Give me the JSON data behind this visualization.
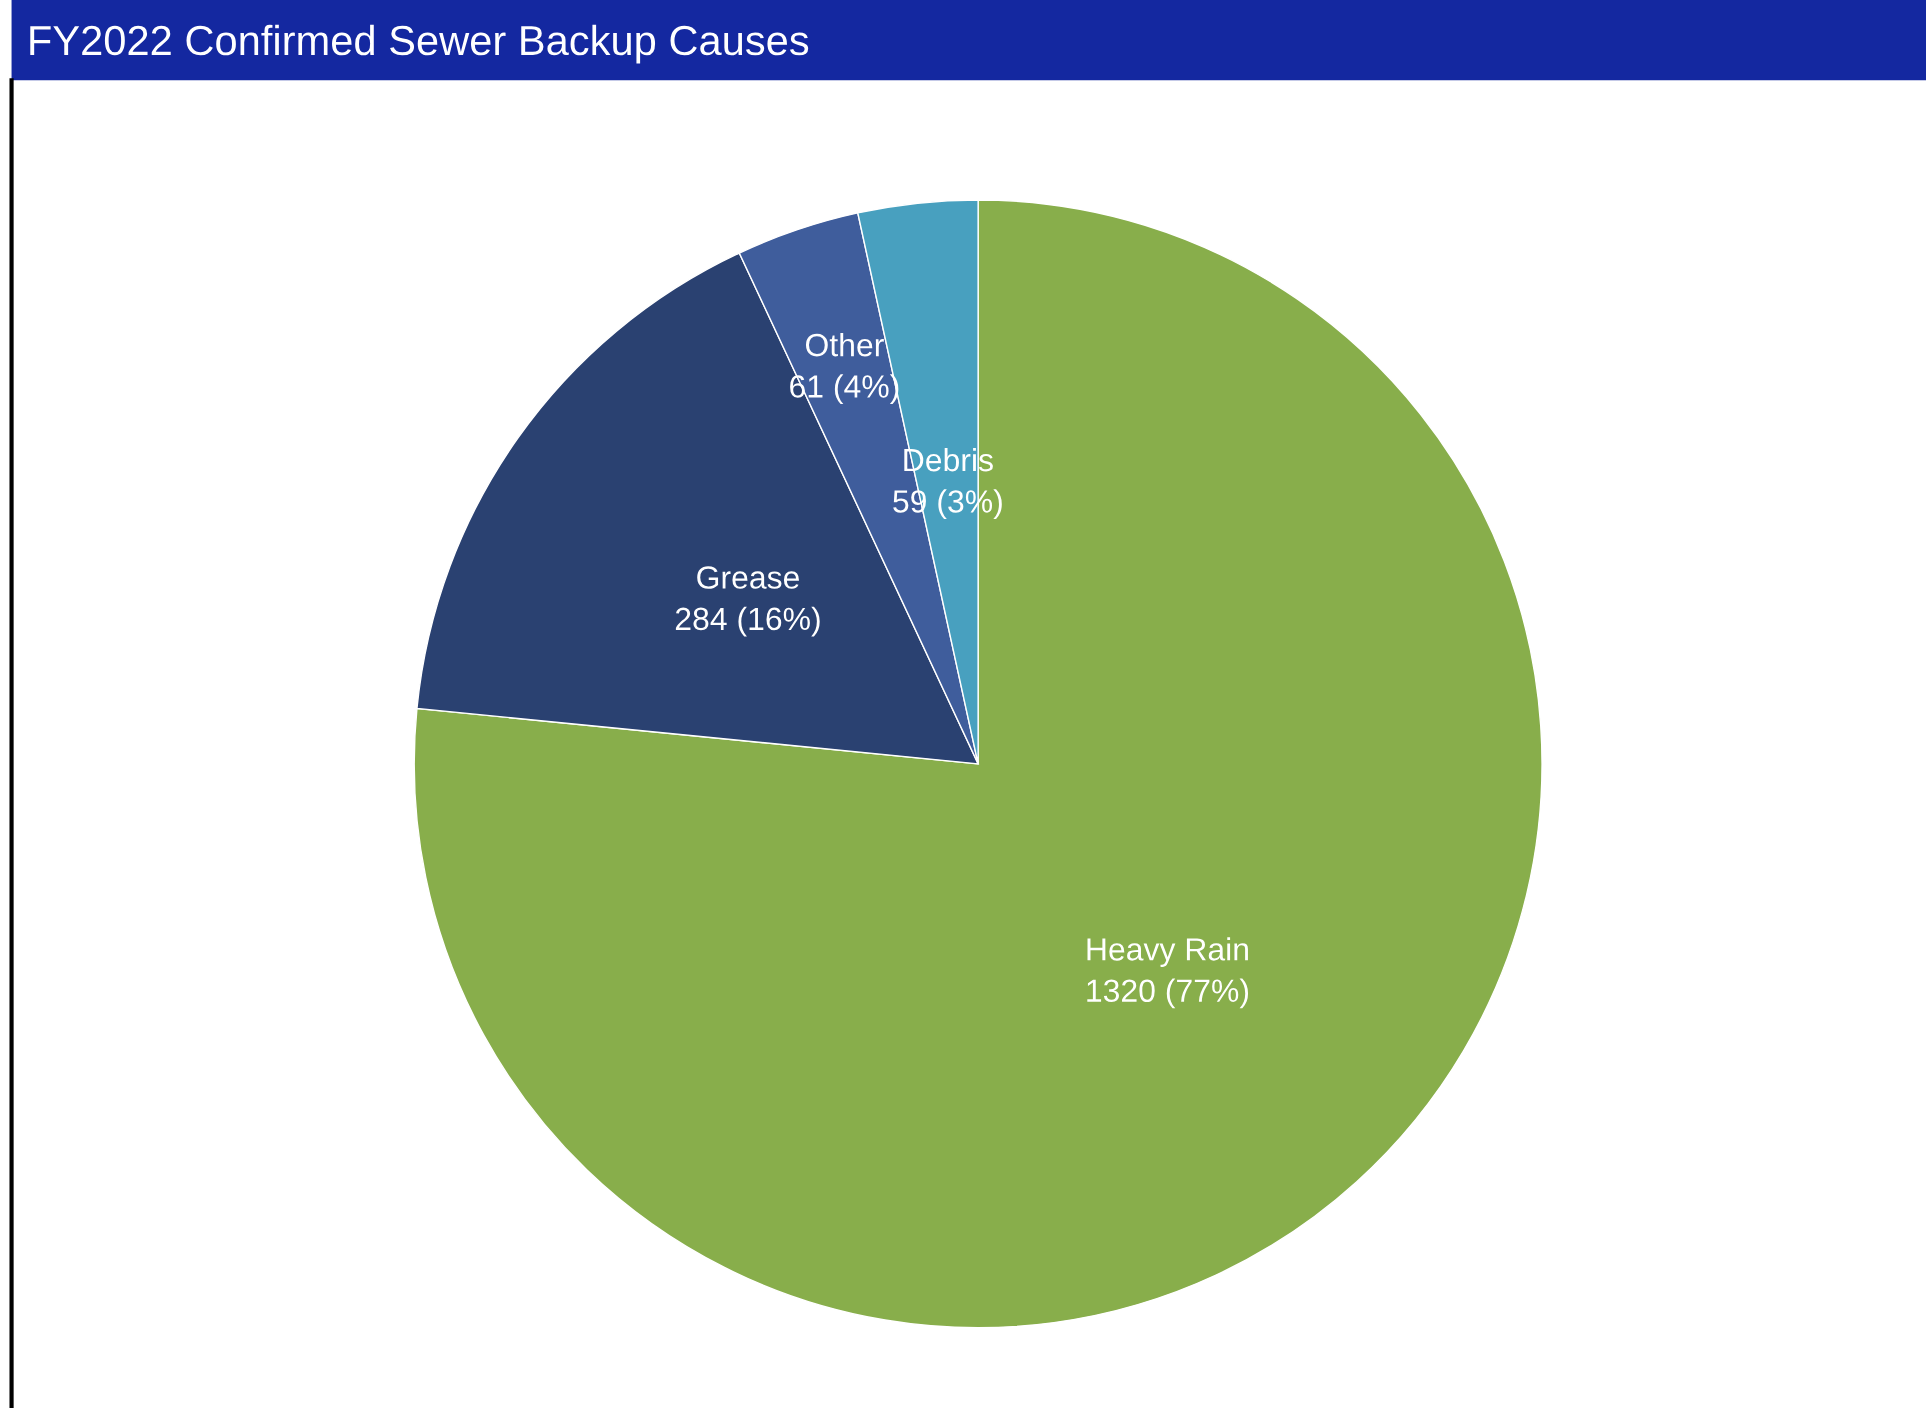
{
  "chart_data": {
    "type": "pie",
    "title": "FY2022 Confirmed Sewer Backup Causes",
    "categories": [
      "Heavy Rain",
      "Grease",
      "Other",
      "Debris"
    ],
    "values": [
      1320,
      284,
      61,
      59
    ],
    "value_labels": [
      "1320 (77%)",
      "284 (16%)",
      "61 (4%)",
      "59 (3%)"
    ],
    "colors": [
      "#88ae4b",
      "#2a4171",
      "#3f5d9c",
      "#48a0bf"
    ],
    "legend": false
  }
}
